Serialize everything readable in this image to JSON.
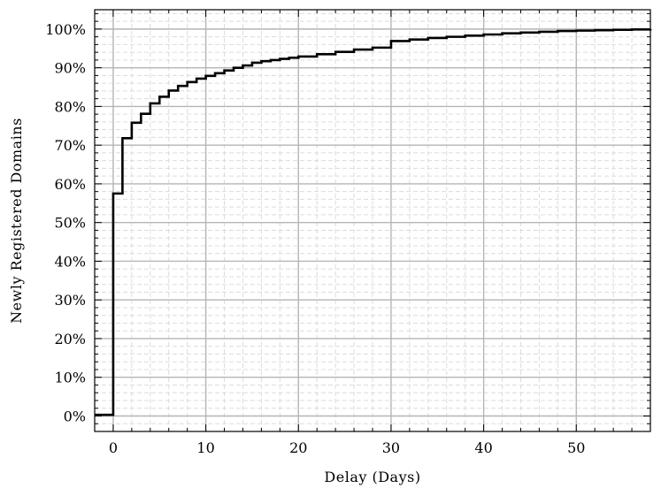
{
  "chart_data": {
    "type": "line",
    "step": true,
    "title": "",
    "xlabel": "Delay (Days)",
    "ylabel": "Newly Registered Domains",
    "xlim": [
      -2,
      58
    ],
    "ylim": [
      -4,
      105
    ],
    "x_ticks": [
      0,
      10,
      20,
      30,
      40,
      50
    ],
    "y_ticks": [
      0,
      10,
      20,
      30,
      40,
      50,
      60,
      70,
      80,
      90,
      100
    ],
    "y_tick_labels": [
      "0%",
      "10%",
      "20%",
      "30%",
      "40%",
      "50%",
      "60%",
      "70%",
      "80%",
      "90%",
      "100%"
    ],
    "grid": true,
    "minor_grid": true,
    "line_color": "#000000",
    "series": [
      {
        "x": [
          -2,
          0,
          1,
          2,
          3,
          4,
          5,
          6,
          7,
          8,
          9,
          10,
          11,
          12,
          13,
          14,
          15,
          16,
          17,
          18,
          19,
          20,
          22,
          24,
          26,
          28,
          30,
          32,
          34,
          36,
          38,
          40,
          42,
          44,
          46,
          48,
          50,
          52,
          54,
          56,
          58
        ],
        "y": [
          0.3,
          57.5,
          71.8,
          75.8,
          78.1,
          80.8,
          82.5,
          84.1,
          85.3,
          86.3,
          87.2,
          87.9,
          88.6,
          89.3,
          90.0,
          90.6,
          91.3,
          91.7,
          92.0,
          92.3,
          92.6,
          92.9,
          93.5,
          94.1,
          94.7,
          95.2,
          96.9,
          97.3,
          97.7,
          98.0,
          98.3,
          98.6,
          98.9,
          99.1,
          99.3,
          99.5,
          99.6,
          99.7,
          99.8,
          99.9,
          100.0
        ]
      }
    ]
  }
}
